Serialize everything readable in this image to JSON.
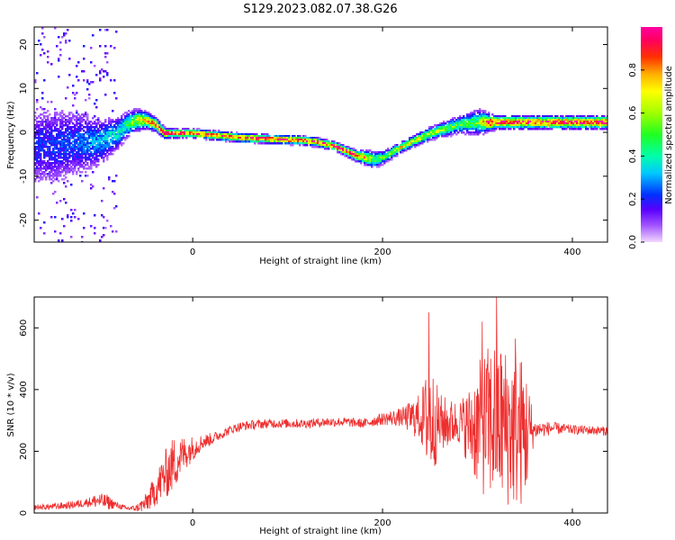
{
  "figure_title": "S129.2023.082.07.38.G26",
  "colors": {
    "snr_line": "#ee2e2e",
    "axis": "#000000"
  },
  "chart_data": [
    {
      "type": "heatmap",
      "title": "S129.2023.082.07.38.G26",
      "xlabel": "Height of straight line (km)",
      "ylabel": "Frequency (Hz)",
      "xlim": [
        -167,
        437
      ],
      "ylim": [
        -25,
        24
      ],
      "x_ticks": [
        0,
        200,
        400
      ],
      "y_ticks": [
        -20,
        -10,
        0,
        10,
        20
      ],
      "colorbar": {
        "label": "Normalized spectral amplitude",
        "range": [
          0,
          1
        ],
        "ticks": [
          "0.0",
          "0.2",
          "0.4",
          "0.6",
          "0.8"
        ],
        "colormap": "rainbow (violet to red to magenta)"
      },
      "ridge_x": [
        -150,
        -120,
        -100,
        -80,
        -70,
        -60,
        -50,
        -40,
        -30,
        -20,
        0,
        50,
        100,
        110,
        130,
        150,
        170,
        180,
        190,
        200,
        220,
        250,
        280,
        300,
        310,
        320,
        350,
        400,
        437
      ],
      "ridge_y": [
        -3,
        -2,
        -2,
        0,
        2,
        3,
        3,
        2,
        0,
        0,
        0,
        -1,
        -1.5,
        -1.5,
        -2,
        -3,
        -5,
        -5.5,
        -6,
        -5.5,
        -3,
        0,
        2,
        2.5,
        2.5,
        2.5,
        2.5,
        2.5,
        2.5
      ],
      "ridge_width_hz": [
        10,
        8,
        6,
        4,
        3,
        2.5,
        2,
        1.5,
        1.2,
        1,
        1,
        1,
        1,
        1,
        1,
        1,
        1.2,
        1.5,
        2,
        1.5,
        1.2,
        1.5,
        2,
        3,
        2,
        1.5,
        1.5,
        1.5,
        1.5
      ],
      "ridge_peak_amplitude": [
        0.2,
        0.25,
        0.3,
        0.35,
        0.45,
        0.6,
        0.7,
        0.85,
        0.9,
        0.9,
        0.9,
        0.9,
        0.9,
        0.9,
        0.9,
        0.9,
        0.9,
        0.8,
        0.5,
        0.5,
        0.7,
        0.6,
        0.5,
        0.5,
        0.9,
        0.9,
        0.9,
        0.9,
        0.9
      ]
    },
    {
      "type": "line",
      "xlabel": "Height of straight line (km)",
      "ylabel": "SNR (10 * v/v)",
      "xlim": [
        -167,
        437
      ],
      "ylim": [
        0,
        700
      ],
      "x_ticks": [
        0,
        200,
        400
      ],
      "y_ticks": [
        0,
        200,
        400,
        600
      ],
      "x": [
        -167,
        -150,
        -130,
        -110,
        -100,
        -90,
        -80,
        -70,
        -60,
        -50,
        -40,
        -30,
        -20,
        -10,
        0,
        10,
        20,
        30,
        40,
        50,
        60,
        80,
        100,
        120,
        140,
        160,
        180,
        200,
        220,
        240,
        250,
        260,
        270,
        280,
        290,
        300,
        310,
        320,
        330,
        340,
        350,
        360,
        380,
        400,
        420,
        437
      ],
      "envelope_mean": [
        18,
        20,
        25,
        35,
        40,
        35,
        25,
        15,
        15,
        30,
        70,
        120,
        160,
        190,
        210,
        230,
        240,
        255,
        270,
        280,
        285,
        290,
        290,
        290,
        295,
        295,
        290,
        305,
        310,
        310,
        300,
        290,
        290,
        295,
        280,
        280,
        290,
        300,
        280,
        270,
        260,
        270,
        275,
        270,
        268,
        265
      ],
      "envelope_amplitude": [
        8,
        10,
        12,
        15,
        25,
        25,
        10,
        8,
        10,
        30,
        50,
        80,
        90,
        60,
        40,
        25,
        20,
        15,
        15,
        15,
        15,
        15,
        15,
        15,
        15,
        15,
        15,
        20,
        30,
        80,
        200,
        100,
        80,
        70,
        120,
        200,
        250,
        280,
        260,
        260,
        240,
        30,
        20,
        15,
        15,
        15
      ],
      "peaks": [
        [
          249,
          650
        ],
        [
          320,
          700
        ],
        [
          340,
          565
        ],
        [
          305,
          620
        ]
      ]
    }
  ]
}
